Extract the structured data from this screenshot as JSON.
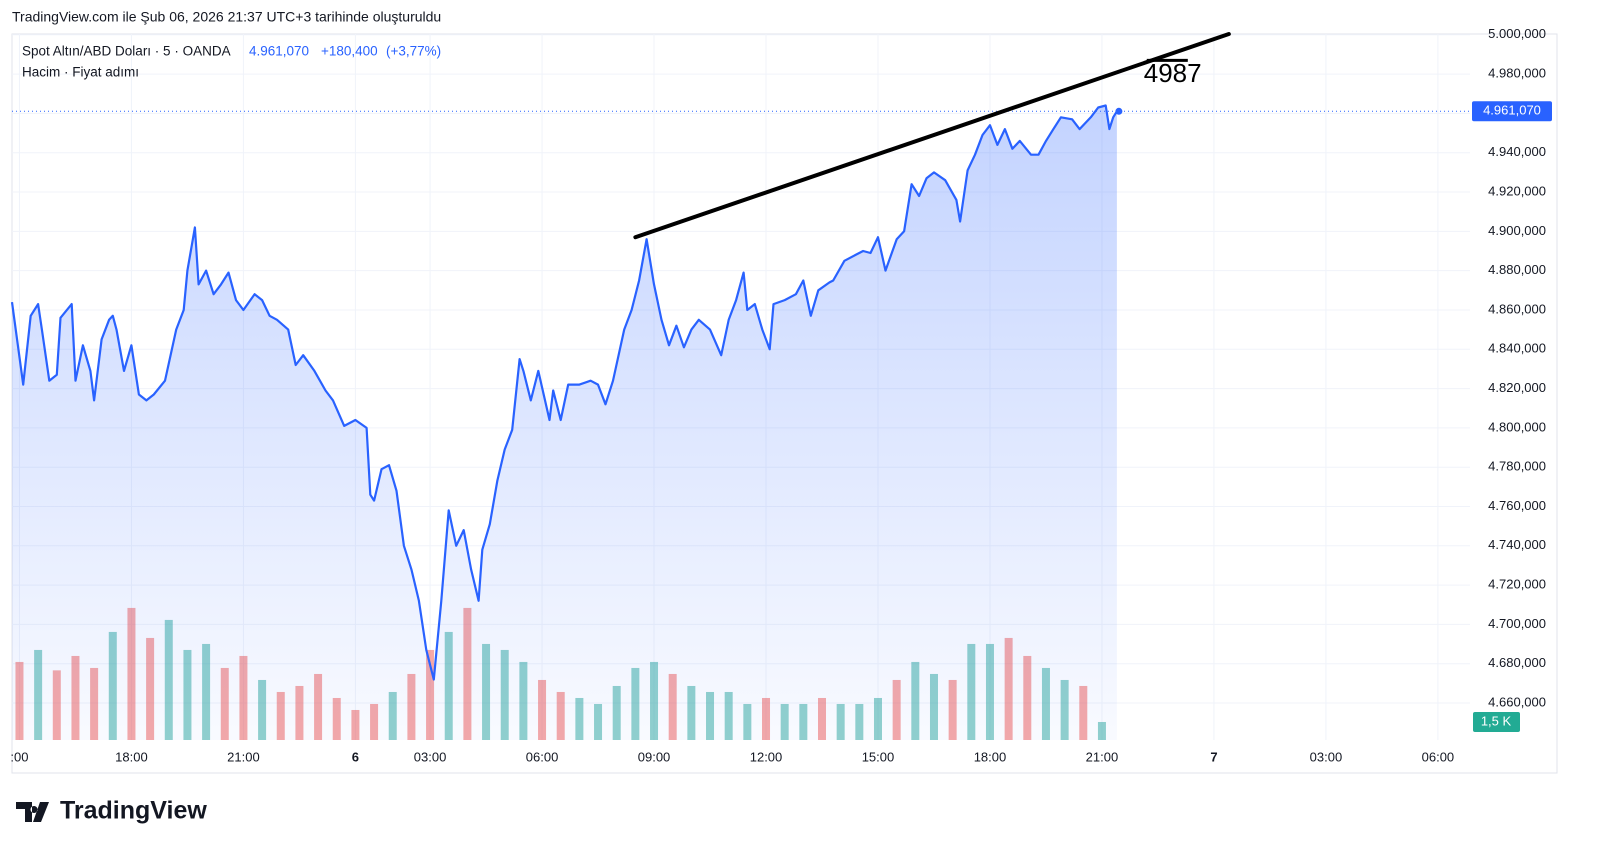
{
  "header": {
    "caption": "TradingView.com ile Şub 06, 2026 21:37 UTC+3 tarihinde oluşturuldu"
  },
  "chart_data": {
    "type": "line",
    "title": "Spot Altın/ABD Doları · 5 · OANDA",
    "subtitle": "Hacim · Fiyat adımı",
    "last_price": {
      "value": 4961.07,
      "label": "4.961,070"
    },
    "change": {
      "value": 180.4,
      "label": "+180,400"
    },
    "change_pct": {
      "value": 3.77,
      "label": "(+3,77%)"
    },
    "xlim": [
      14.8,
      53.86
    ],
    "xticks": [
      {
        "value": 15,
        "label": ":00"
      },
      {
        "value": 18,
        "label": "18:00"
      },
      {
        "value": 21,
        "label": "21:00"
      },
      {
        "value": 24,
        "label": "6"
      },
      {
        "value": 26,
        "label": "03:00"
      },
      {
        "value": 29,
        "label": "06:00"
      },
      {
        "value": 32,
        "label": "09:00"
      },
      {
        "value": 35,
        "label": "12:00"
      },
      {
        "value": 38,
        "label": "15:00"
      },
      {
        "value": 41,
        "label": "18:00"
      },
      {
        "value": 44,
        "label": "21:00"
      },
      {
        "value": 47,
        "label": "7"
      },
      {
        "value": 50,
        "label": "03:00"
      },
      {
        "value": 53,
        "label": "06:00"
      }
    ],
    "ylim": [
      4641.2,
      5000.4
    ],
    "yticks": [
      {
        "value": 4660,
        "label": "4.660,000"
      },
      {
        "value": 4680,
        "label": "4.680,000"
      },
      {
        "value": 4700,
        "label": "4.700,000"
      },
      {
        "value": 4720,
        "label": "4.720,000"
      },
      {
        "value": 4740,
        "label": "4.740,000"
      },
      {
        "value": 4760,
        "label": "4.760,000"
      },
      {
        "value": 4780,
        "label": "4.780,000"
      },
      {
        "value": 4800,
        "label": "4.800,000"
      },
      {
        "value": 4820,
        "label": "4.820,000"
      },
      {
        "value": 4840,
        "label": "4.840,000"
      },
      {
        "value": 4860,
        "label": "4.860,000"
      },
      {
        "value": 4880,
        "label": "4.880,000"
      },
      {
        "value": 4900,
        "label": "4.900,000"
      },
      {
        "value": 4920,
        "label": "4.920,000"
      },
      {
        "value": 4940,
        "label": "4.940,000"
      },
      {
        "value": 4960,
        "label": "4.960,000"
      },
      {
        "value": 4980,
        "label": "4.980,000"
      },
      {
        "value": 5000,
        "label": "5.000,000"
      }
    ],
    "y2lim": [
      0,
      58.8
    ],
    "y2ticks": [
      {
        "value": 1.5,
        "label": "1,5 K"
      }
    ],
    "grid": true,
    "series": [
      {
        "color": "#2962ff",
        "x": [
          14.8,
          15.1,
          15.3,
          15.5,
          15.6,
          15.8,
          16.0,
          16.1,
          16.4,
          16.5,
          16.7,
          16.9,
          17.0,
          17.2,
          17.4,
          17.5,
          17.6,
          17.8,
          18.0,
          18.2,
          18.4,
          18.6,
          18.9,
          19.2,
          19.4,
          19.5,
          19.7,
          19.8,
          20.0,
          20.2,
          20.4,
          20.6,
          20.8,
          21.0,
          21.3,
          21.5,
          21.7,
          21.9,
          22.2,
          22.4,
          22.6,
          22.9,
          23.2,
          23.4,
          23.7,
          24.0,
          24.3,
          24.4,
          24.5,
          24.7,
          24.9,
          25.1,
          25.3,
          25.5,
          25.7,
          25.9,
          26.1,
          26.3,
          26.5,
          26.7,
          26.9,
          27.1,
          27.3,
          27.4,
          27.6,
          27.8,
          28.0,
          28.2,
          28.4,
          28.5,
          28.7,
          28.9,
          29.2,
          29.3,
          29.5,
          29.7,
          30.0,
          30.3,
          30.5,
          30.7,
          30.9,
          31.2,
          31.4,
          31.6,
          31.8,
          32.0,
          32.2,
          32.4,
          32.6,
          32.8,
          33.0,
          33.2,
          33.5,
          33.8,
          34.0,
          34.2,
          34.4,
          34.5,
          34.7,
          34.9,
          35.1,
          35.2,
          35.5,
          35.8,
          36.0,
          36.2,
          36.4,
          36.7,
          36.8,
          37.1,
          37.4,
          37.6,
          37.8,
          38.0,
          38.2,
          38.5,
          38.7,
          38.9,
          39.1,
          39.3,
          39.5,
          39.8,
          40.1,
          40.2,
          40.4,
          40.6,
          40.8,
          41.0,
          41.2,
          41.4,
          41.6,
          41.8,
          42.1,
          42.3,
          42.5,
          42.7,
          42.9,
          43.2,
          43.4,
          43.7,
          43.9,
          44.1,
          44.2,
          44.3,
          44.4
        ],
        "values": [
          4864,
          4822,
          4857,
          4863,
          4850,
          4824,
          4827,
          4856,
          4863,
          4824,
          4842,
          4829,
          4814,
          4845,
          4855,
          4857,
          4850,
          4829,
          4842,
          4817,
          4814,
          4817,
          4824,
          4850,
          4860,
          4880,
          4902,
          4873,
          4880,
          4868,
          4873,
          4879,
          4865,
          4860,
          4868,
          4865,
          4857,
          4855,
          4850,
          4832,
          4837,
          4829,
          4819,
          4814,
          4801,
          4804,
          4800,
          4766,
          4763,
          4779,
          4781,
          4768,
          4740,
          4728,
          4712,
          4687,
          4672,
          4712,
          4758,
          4740,
          4748,
          4728,
          4712,
          4738,
          4751,
          4773,
          4789,
          4799,
          4835,
          4829,
          4814,
          4829,
          4804,
          4819,
          4804,
          4822,
          4822,
          4824,
          4822,
          4812,
          4824,
          4850,
          4860,
          4875,
          4896,
          4873,
          4855,
          4842,
          4852,
          4841,
          4850,
          4855,
          4850,
          4837,
          4855,
          4865,
          4879,
          4860,
          4863,
          4850,
          4840,
          4863,
          4865,
          4868,
          4875,
          4857,
          4870,
          4874,
          4875,
          4885,
          4888,
          4890,
          4889,
          4897,
          4880,
          4896,
          4900,
          4924,
          4918,
          4927,
          4930,
          4926,
          4916,
          4905,
          4931,
          4939,
          4949,
          4954,
          4944,
          4952,
          4942,
          4946,
          4939,
          4939,
          4946,
          4952,
          4958,
          4957,
          4952,
          4958,
          4963,
          4964,
          4952,
          4958,
          4961.07
        ]
      },
      {
        "type": "bar",
        "axis": "y2",
        "up_color": "#26a69a",
        "down_color": "#ef5350",
        "x": [
          15,
          15.5,
          16,
          16.5,
          17,
          17.5,
          18,
          18.5,
          19,
          19.5,
          20,
          20.5,
          21,
          21.5,
          22,
          22.5,
          23,
          23.5,
          24,
          24.5,
          25,
          25.5,
          26,
          26.5,
          27,
          27.5,
          28,
          28.5,
          29,
          29.5,
          30,
          30.5,
          31,
          31.5,
          32,
          32.5,
          33,
          33.5,
          34,
          34.5,
          35,
          35.5,
          36,
          36.5,
          37,
          37.5,
          38,
          38.5,
          39,
          39.5,
          40,
          40.5,
          41,
          41.5,
          42,
          42.5,
          43,
          43.5,
          44
        ],
        "values": [
          6.5,
          7.5,
          5.8,
          7,
          6,
          9,
          11,
          8.5,
          10,
          7.5,
          8,
          6,
          7,
          5,
          4,
          4.5,
          5.5,
          3.5,
          2.5,
          3,
          4,
          5.5,
          7.5,
          9,
          11,
          8,
          7.5,
          6.5,
          5,
          4,
          3.5,
          3,
          4.5,
          6,
          6.5,
          5.5,
          4.5,
          4,
          4,
          3,
          3.5,
          3,
          3,
          3.5,
          3,
          3,
          3.5,
          5,
          6.5,
          5.5,
          5,
          8,
          8,
          8.5,
          7,
          6,
          5,
          4.5,
          1.5
        ]
      }
    ],
    "trendline": {
      "x": [
        31.5,
        47.4
      ],
      "values": [
        4897,
        5000.4
      ],
      "color": "#000000"
    },
    "level": {
      "x": [
        45.2,
        46.3
      ],
      "value": 4987
    }
  },
  "footer": {
    "brand": "TradingView"
  }
}
